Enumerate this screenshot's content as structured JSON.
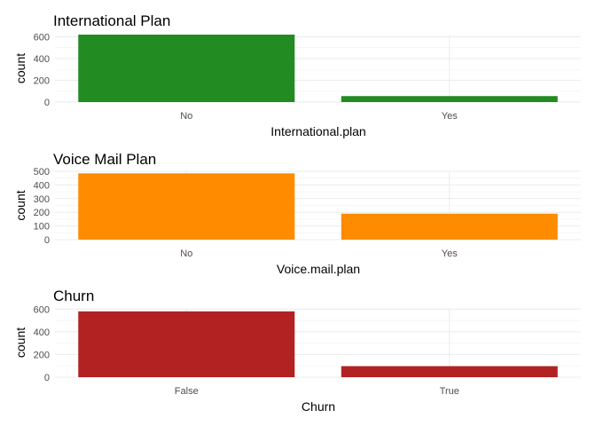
{
  "chart_data": [
    {
      "type": "bar",
      "title": "International Plan",
      "xlabel": "International.plan",
      "ylabel": "count",
      "categories": [
        "No",
        "Yes"
      ],
      "values": [
        620,
        55
      ],
      "color": "#228B22",
      "yticks": [
        0,
        200,
        400,
        600
      ],
      "ylim": [
        0,
        620
      ],
      "grid": true
    },
    {
      "type": "bar",
      "title": "Voice Mail Plan",
      "xlabel": "Voice.mail.plan",
      "ylabel": "count",
      "categories": [
        "No",
        "Yes"
      ],
      "values": [
        485,
        190
      ],
      "color": "#FF8C00",
      "yticks": [
        0,
        100,
        200,
        300,
        400,
        500
      ],
      "ylim": [
        0,
        500
      ],
      "grid": true
    },
    {
      "type": "bar",
      "title": "Churn",
      "xlabel": "Churn",
      "ylabel": "count",
      "categories": [
        "False",
        "True"
      ],
      "values": [
        580,
        97
      ],
      "color": "#B22222",
      "yticks": [
        0,
        200,
        400,
        600
      ],
      "ylim": [
        0,
        610
      ],
      "grid": true
    }
  ]
}
